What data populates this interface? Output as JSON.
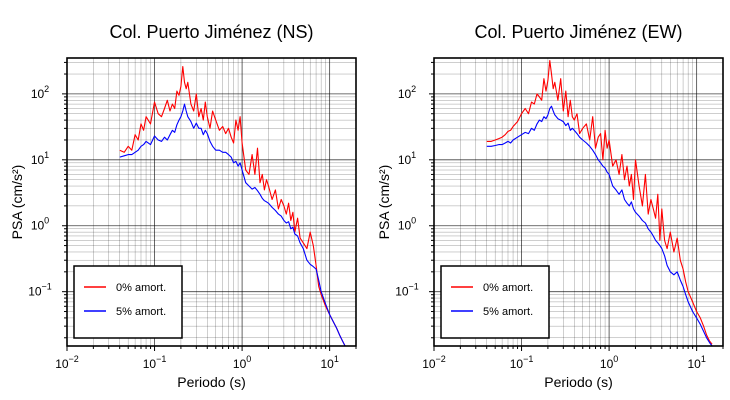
{
  "figure": {
    "background": "#ffffff"
  },
  "chart_data": [
    {
      "type": "line",
      "title": "Col. Puerto Jiménez (NS)",
      "xlabel": "Periodo (s)",
      "ylabel": "PSA (cm/s²)",
      "xscale": "log",
      "yscale": "log",
      "xlim": [
        0.01,
        20
      ],
      "ylim": [
        0.015,
        350
      ],
      "xticks": [
        {
          "value": 0.01,
          "base": "10",
          "exp": "−2"
        },
        {
          "value": 0.1,
          "base": "10",
          "exp": "−1"
        },
        {
          "value": 1,
          "base": "10",
          "exp": "0"
        },
        {
          "value": 10,
          "base": "10",
          "exp": "1"
        }
      ],
      "yticks": [
        {
          "value": 0.1,
          "base": "10",
          "exp": "−1"
        },
        {
          "value": 1,
          "base": "10",
          "exp": "0"
        },
        {
          "value": 10,
          "base": "10",
          "exp": "1"
        },
        {
          "value": 100,
          "base": "10",
          "exp": "2"
        }
      ],
      "grid": true,
      "legend_position": "bottom-left",
      "series": [
        {
          "name": "0% amort.",
          "color": "#ff0000",
          "x": [
            0.04,
            0.045,
            0.05,
            0.055,
            0.06,
            0.065,
            0.07,
            0.075,
            0.08,
            0.09,
            0.1,
            0.11,
            0.12,
            0.13,
            0.14,
            0.15,
            0.16,
            0.17,
            0.18,
            0.19,
            0.2,
            0.21,
            0.22,
            0.23,
            0.24,
            0.26,
            0.28,
            0.3,
            0.32,
            0.34,
            0.36,
            0.38,
            0.4,
            0.43,
            0.46,
            0.5,
            0.55,
            0.6,
            0.65,
            0.7,
            0.75,
            0.8,
            0.85,
            0.9,
            0.95,
            1.0,
            1.1,
            1.2,
            1.3,
            1.4,
            1.5,
            1.6,
            1.7,
            1.8,
            1.9,
            2.0,
            2.2,
            2.4,
            2.6,
            2.8,
            3.0,
            3.2,
            3.4,
            3.6,
            3.8,
            4.0,
            4.3,
            4.6,
            5.0,
            5.5,
            6.0,
            6.5,
            7.0,
            7.5,
            8.0,
            9.0,
            10.0,
            11.0,
            12.0,
            13.0,
            14.0,
            15.0
          ],
          "y": [
            14,
            13,
            16,
            14,
            24,
            20,
            35,
            28,
            45,
            35,
            75,
            50,
            45,
            60,
            80,
            55,
            70,
            60,
            110,
            95,
            130,
            260,
            150,
            120,
            150,
            70,
            55,
            100,
            45,
            60,
            40,
            75,
            45,
            30,
            55,
            40,
            28,
            32,
            25,
            30,
            22,
            18,
            40,
            28,
            45,
            18,
            7,
            6,
            12,
            6,
            15,
            4.5,
            6,
            3.5,
            5,
            4,
            2.5,
            3.5,
            1.8,
            2.5,
            2,
            1.5,
            2.2,
            1.2,
            1.6,
            0.8,
            1.3,
            0.65,
            0.55,
            0.45,
            0.8,
            0.5,
            0.25,
            0.12,
            0.09,
            0.06,
            0.045,
            0.035,
            0.028,
            0.022,
            0.018,
            0.015
          ]
        },
        {
          "name": "5% amort.",
          "color": "#0000ff",
          "x": [
            0.04,
            0.045,
            0.05,
            0.055,
            0.06,
            0.065,
            0.07,
            0.075,
            0.08,
            0.09,
            0.1,
            0.11,
            0.12,
            0.13,
            0.14,
            0.15,
            0.16,
            0.17,
            0.18,
            0.19,
            0.2,
            0.21,
            0.22,
            0.23,
            0.24,
            0.26,
            0.28,
            0.3,
            0.32,
            0.34,
            0.36,
            0.38,
            0.4,
            0.43,
            0.46,
            0.5,
            0.55,
            0.6,
            0.65,
            0.7,
            0.75,
            0.8,
            0.85,
            0.9,
            0.95,
            1.0,
            1.1,
            1.2,
            1.3,
            1.4,
            1.5,
            1.6,
            1.7,
            1.8,
            1.9,
            2.0,
            2.2,
            2.4,
            2.6,
            2.8,
            3.0,
            3.2,
            3.4,
            3.6,
            3.8,
            4.0,
            4.3,
            4.6,
            5.0,
            5.5,
            6.0,
            6.5,
            7.0,
            7.5,
            8.0,
            9.0,
            10.0,
            11.0,
            12.0,
            13.0,
            14.0,
            15.0
          ],
          "y": [
            11,
            11.5,
            12,
            12,
            13,
            14,
            16,
            17,
            19,
            17,
            23,
            20,
            19,
            22,
            20,
            24,
            28,
            26,
            34,
            40,
            45,
            55,
            70,
            55,
            45,
            38,
            30,
            36,
            30,
            30,
            24,
            28,
            25,
            19,
            16,
            14,
            14,
            13,
            13,
            12,
            11,
            9,
            9.5,
            8,
            9,
            7,
            4.5,
            4,
            3.6,
            3.8,
            3.4,
            3,
            2.6,
            2.4,
            2.3,
            2.2,
            1.9,
            1.7,
            1.5,
            1.4,
            1.2,
            1.1,
            1.15,
            0.9,
            0.95,
            0.75,
            0.7,
            0.55,
            0.45,
            0.3,
            0.26,
            0.24,
            0.22,
            0.15,
            0.1,
            0.065,
            0.045,
            0.035,
            0.028,
            0.022,
            0.018,
            0.015
          ]
        }
      ]
    },
    {
      "type": "line",
      "title": "Col. Puerto Jiménez (EW)",
      "xlabel": "Periodo (s)",
      "ylabel": "PSA (cm/s²)",
      "xscale": "log",
      "yscale": "log",
      "xlim": [
        0.01,
        20
      ],
      "ylim": [
        0.015,
        350
      ],
      "xticks": [
        {
          "value": 0.01,
          "base": "10",
          "exp": "−2"
        },
        {
          "value": 0.1,
          "base": "10",
          "exp": "−1"
        },
        {
          "value": 1,
          "base": "10",
          "exp": "0"
        },
        {
          "value": 10,
          "base": "10",
          "exp": "1"
        }
      ],
      "yticks": [
        {
          "value": 0.1,
          "base": "10",
          "exp": "−1"
        },
        {
          "value": 1,
          "base": "10",
          "exp": "0"
        },
        {
          "value": 10,
          "base": "10",
          "exp": "1"
        },
        {
          "value": 100,
          "base": "10",
          "exp": "2"
        }
      ],
      "grid": true,
      "legend_position": "bottom-left",
      "series": [
        {
          "name": "0% amort.",
          "color": "#ff0000",
          "x": [
            0.04,
            0.045,
            0.05,
            0.055,
            0.06,
            0.065,
            0.07,
            0.075,
            0.08,
            0.09,
            0.1,
            0.11,
            0.12,
            0.13,
            0.14,
            0.15,
            0.16,
            0.17,
            0.18,
            0.19,
            0.2,
            0.21,
            0.22,
            0.23,
            0.24,
            0.26,
            0.28,
            0.3,
            0.32,
            0.34,
            0.36,
            0.38,
            0.4,
            0.43,
            0.46,
            0.5,
            0.55,
            0.6,
            0.65,
            0.7,
            0.75,
            0.8,
            0.85,
            0.9,
            0.95,
            1.0,
            1.1,
            1.2,
            1.3,
            1.4,
            1.5,
            1.6,
            1.7,
            1.8,
            1.9,
            2.0,
            2.2,
            2.4,
            2.6,
            2.8,
            3.0,
            3.2,
            3.4,
            3.6,
            3.8,
            4.0,
            4.3,
            4.6,
            5.0,
            5.5,
            6.0,
            6.5,
            7.0,
            7.5,
            8.0,
            9.0,
            10.0,
            11.0,
            12.0,
            13.0,
            14.0,
            15.0
          ],
          "y": [
            19,
            19,
            20,
            21,
            22,
            24,
            27,
            28,
            32,
            38,
            50,
            60,
            50,
            75,
            70,
            100,
            90,
            80,
            170,
            110,
            160,
            320,
            200,
            120,
            150,
            80,
            170,
            55,
            110,
            45,
            80,
            45,
            40,
            50,
            25,
            30,
            35,
            20,
            45,
            15,
            22,
            25,
            10,
            28,
            15,
            20,
            8,
            10,
            6,
            12,
            5,
            8,
            4,
            6,
            2.5,
            10,
            4,
            2,
            6,
            1.5,
            2.5,
            1.8,
            1.3,
            3,
            0.6,
            1.8,
            0.6,
            0.45,
            0.8,
            0.4,
            0.65,
            0.3,
            0.22,
            0.14,
            0.1,
            0.07,
            0.05,
            0.04,
            0.03,
            0.022,
            0.018,
            0.016
          ]
        },
        {
          "name": "5% amort.",
          "color": "#0000ff",
          "x": [
            0.04,
            0.045,
            0.05,
            0.055,
            0.06,
            0.065,
            0.07,
            0.075,
            0.08,
            0.09,
            0.1,
            0.11,
            0.12,
            0.13,
            0.14,
            0.15,
            0.16,
            0.17,
            0.18,
            0.19,
            0.2,
            0.21,
            0.22,
            0.23,
            0.24,
            0.26,
            0.28,
            0.3,
            0.32,
            0.34,
            0.36,
            0.38,
            0.4,
            0.43,
            0.46,
            0.5,
            0.55,
            0.6,
            0.65,
            0.7,
            0.75,
            0.8,
            0.85,
            0.9,
            0.95,
            1.0,
            1.1,
            1.2,
            1.3,
            1.4,
            1.5,
            1.6,
            1.7,
            1.8,
            1.9,
            2.0,
            2.2,
            2.4,
            2.6,
            2.8,
            3.0,
            3.2,
            3.4,
            3.6,
            3.8,
            4.0,
            4.3,
            4.6,
            5.0,
            5.5,
            6.0,
            6.5,
            7.0,
            7.5,
            8.0,
            9.0,
            10.0,
            11.0,
            12.0,
            13.0,
            14.0,
            15.0
          ],
          "y": [
            16,
            16,
            16.5,
            17,
            17,
            18,
            19,
            18,
            20,
            22,
            24,
            26,
            25,
            30,
            28,
            35,
            40,
            38,
            45,
            42,
            48,
            60,
            65,
            55,
            48,
            42,
            40,
            38,
            33,
            36,
            28,
            30,
            28,
            25,
            22,
            20,
            18,
            16,
            14,
            12,
            10,
            9,
            8,
            7.5,
            6.5,
            6,
            4,
            3.5,
            3,
            3.5,
            2.5,
            2.2,
            2,
            2.3,
            1.8,
            1.6,
            1.4,
            1.2,
            1.1,
            0.9,
            0.8,
            0.7,
            0.6,
            0.55,
            0.5,
            0.45,
            0.35,
            0.25,
            0.2,
            0.18,
            0.2,
            0.15,
            0.12,
            0.09,
            0.07,
            0.05,
            0.04,
            0.032,
            0.025,
            0.02,
            0.017,
            0.015
          ]
        }
      ]
    }
  ]
}
